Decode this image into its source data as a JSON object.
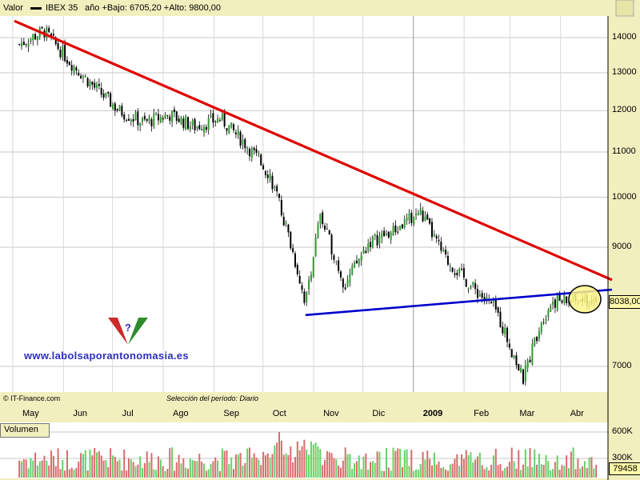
{
  "header": {
    "valor_label": "Valor",
    "series_name": "IBEX 35",
    "range_text": "año +Bajo: 6705,20 +Alto: 9800,00"
  },
  "footer": {
    "source": "© IT-Finance.com",
    "period": "Selección del período: Diario"
  },
  "watermark": {
    "url": "www.labolsaporantonomasia.es"
  },
  "volume_panel": {
    "label": "Volumen",
    "tick_labels": [
      "600K",
      "300K"
    ],
    "last_volume": "79458"
  },
  "price_panel": {
    "last_price": "8038,00",
    "y_ticks": [
      "14000",
      "13000",
      "12000",
      "11000",
      "10000",
      "9000",
      "7000"
    ],
    "x_labels": [
      "May",
      "Jun",
      "Jul",
      "Ago",
      "Sep",
      "Oct",
      "Nov",
      "Dic",
      "2009",
      "Feb",
      "Mar",
      "Abr"
    ]
  },
  "colors": {
    "background": "#f2efbf",
    "plot_bg": "#ffffff",
    "resistance_line": "#e00000",
    "support_line": "#0000cc",
    "candle_up": "#2e9a2e",
    "candle_down": "#000000",
    "volume_up": "#66d166",
    "volume_down": "#d96b6b",
    "highlight_circle": "#fff68a"
  },
  "chart_data": {
    "type": "candlestick",
    "title": "IBEX 35",
    "x_range": [
      "2008-05",
      "2009-04"
    ],
    "y_scale": "log",
    "ylim": [
      6500,
      14700
    ],
    "grid": true,
    "close_series": {
      "dates": [
        "2008-05-05",
        "2008-05-20",
        "2008-06-05",
        "2008-06-20",
        "2008-07-05",
        "2008-07-20",
        "2008-08-05",
        "2008-08-20",
        "2008-09-05",
        "2008-09-20",
        "2008-10-05",
        "2008-10-15",
        "2008-10-27",
        "2008-11-05",
        "2008-11-20",
        "2008-12-05",
        "2008-12-20",
        "2009-01-05",
        "2009-01-20",
        "2009-02-05",
        "2009-02-20",
        "2009-03-09",
        "2009-03-20",
        "2009-03-27"
      ],
      "values": [
        13800,
        14200,
        13300,
        12600,
        12000,
        11700,
        11900,
        11600,
        11800,
        11200,
        10500,
        9400,
        8000,
        9600,
        8300,
        9100,
        9300,
        9700,
        8800,
        8300,
        7900,
        6800,
        7700,
        8038
      ]
    },
    "trendlines": [
      {
        "name": "resistance",
        "from": [
          "2008-05-02",
          14500
        ],
        "to": [
          "2009-04-30",
          8400
        ]
      },
      {
        "name": "support",
        "from": [
          "2008-10-27",
          7800
        ],
        "to": [
          "2009-04-30",
          8230
        ]
      }
    ],
    "volume_scale_ticks": [
      600000,
      300000
    ],
    "last_price": 8038.0,
    "last_volume": 79458
  }
}
